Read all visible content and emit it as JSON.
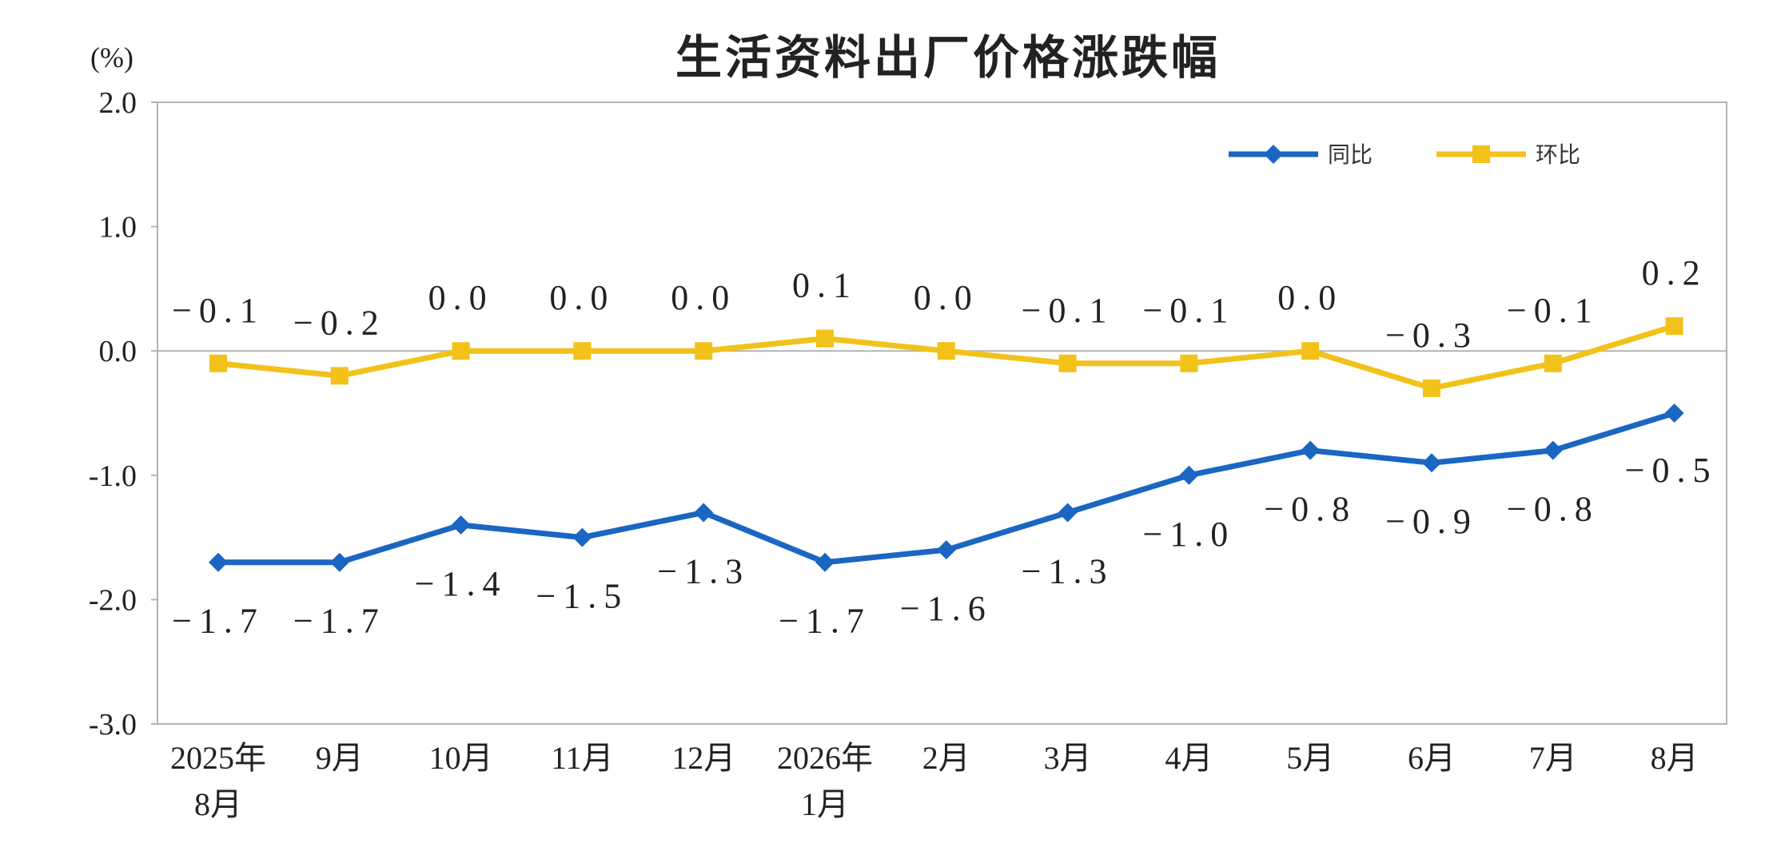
{
  "chart_data": {
    "type": "line",
    "title": "生活资料出厂价格涨跌幅",
    "unit": "(%)",
    "ylim": [
      -3.0,
      2.0
    ],
    "yticks": [
      "2.0",
      "1.0",
      "0.0",
      "-1.0",
      "-2.0",
      "-3.0"
    ],
    "categories": [
      [
        "2025年",
        "8月"
      ],
      [
        "9月"
      ],
      [
        "10月"
      ],
      [
        "11月"
      ],
      [
        "12月"
      ],
      [
        "2026年",
        "1月"
      ],
      [
        "2月"
      ],
      [
        "3月"
      ],
      [
        "4月"
      ],
      [
        "5月"
      ],
      [
        "6月"
      ],
      [
        "7月"
      ],
      [
        "8月"
      ]
    ],
    "series": [
      {
        "name": "同比",
        "color": "#1a66c2",
        "marker": "diamond",
        "values": [
          -1.7,
          -1.7,
          -1.4,
          -1.5,
          -1.3,
          -1.7,
          -1.6,
          -1.3,
          -1.0,
          -0.8,
          -0.9,
          -0.8,
          -0.5
        ],
        "labels": [
          "−1.7",
          "−1.7",
          "−1.4",
          "−1.5",
          "−1.3",
          "−1.7",
          "−1.6",
          "−1.3",
          "−1.0",
          "−0.8",
          "−0.9",
          "−0.8",
          "−0.5"
        ]
      },
      {
        "name": "环比",
        "color": "#f2c21b",
        "marker": "square",
        "values": [
          -0.1,
          -0.2,
          0.0,
          0.0,
          0.0,
          0.1,
          0.0,
          -0.1,
          -0.1,
          0.0,
          -0.3,
          -0.1,
          0.2
        ],
        "labels": [
          "−0.1",
          "−0.2",
          "0.0",
          "0.0",
          "0.0",
          "0.1",
          "0.0",
          "−0.1",
          "−0.1",
          "0.0",
          "−0.3",
          "−0.1",
          "0.2"
        ]
      }
    ],
    "grid": false,
    "legend": "top-right"
  }
}
